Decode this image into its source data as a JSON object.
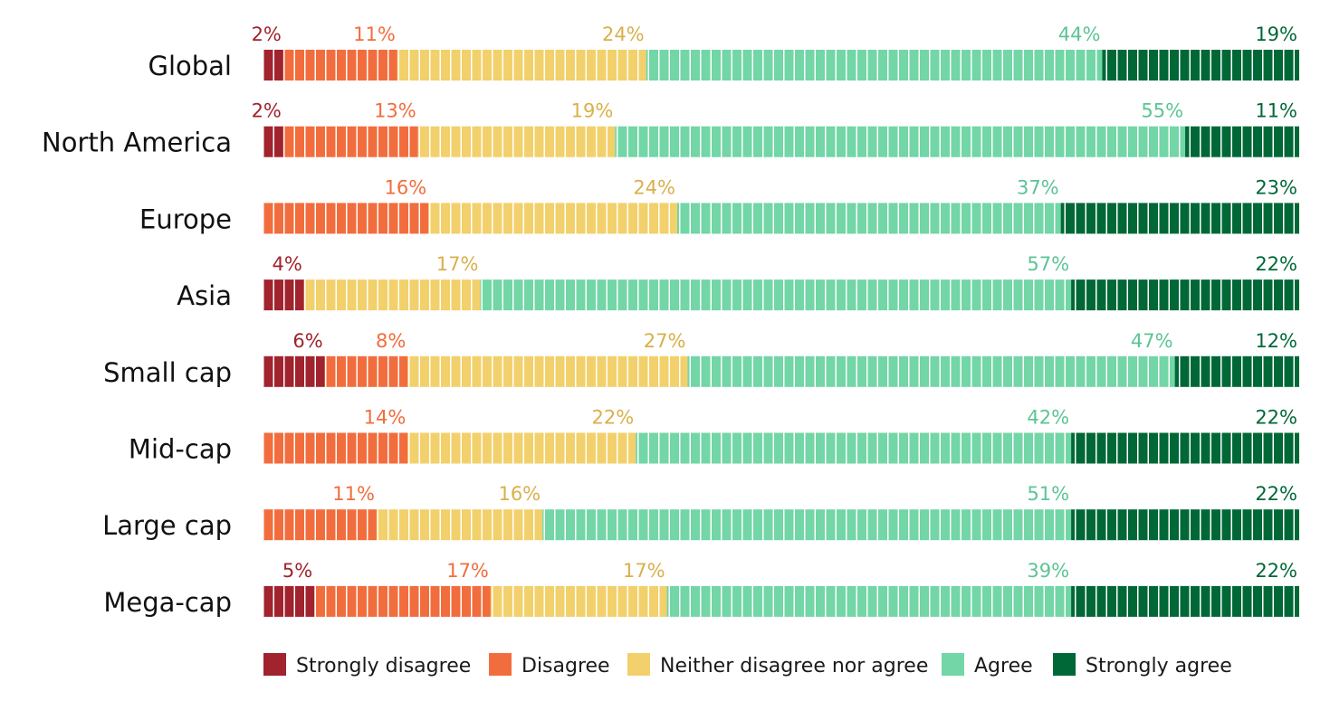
{
  "chart_data": {
    "type": "bar",
    "orientation": "horizontal",
    "stacked": "100%",
    "categories": [
      "Global",
      "North America",
      "Europe",
      "Asia",
      "Small cap",
      "Mid-cap",
      "Large cap",
      "Mega-cap"
    ],
    "series": [
      {
        "name": "Strongly disagree",
        "color": "#a0232e",
        "values": [
          2,
          2,
          0,
          4,
          6,
          0,
          0,
          5
        ]
      },
      {
        "name": "Disagree",
        "color": "#f26d3d",
        "values": [
          11,
          13,
          16,
          0,
          8,
          14,
          11,
          17
        ]
      },
      {
        "name": "Neither disagree nor agree",
        "color": "#f2d06b",
        "values": [
          24,
          19,
          24,
          17,
          27,
          22,
          16,
          17
        ]
      },
      {
        "name": "Agree",
        "color": "#72d6a6",
        "values": [
          44,
          55,
          37,
          57,
          47,
          42,
          51,
          39
        ]
      },
      {
        "name": "Strongly agree",
        "color": "#006837",
        "values": [
          19,
          11,
          23,
          22,
          12,
          22,
          22,
          22
        ]
      }
    ],
    "value_labels": [
      [
        "2%",
        "11%",
        "24%",
        "44%",
        "19%"
      ],
      [
        "2%",
        "13%",
        "19%",
        "55%",
        "11%"
      ],
      [
        "",
        "16%",
        "24%",
        "37%",
        "23%"
      ],
      [
        "4%",
        "",
        "17%",
        "57%",
        "22%"
      ],
      [
        "6%",
        "8%",
        "27%",
        "47%",
        "12%"
      ],
      [
        "",
        "14%",
        "22%",
        "42%",
        "22%"
      ],
      [
        "",
        "11%",
        "16%",
        "51%",
        "22%"
      ],
      [
        "5%",
        "17%",
        "17%",
        "39%",
        "22%"
      ]
    ],
    "label_colors": [
      "#a0232e",
      "#f26d3d",
      "#d9b04a",
      "#5cc495",
      "#006837"
    ],
    "title": "",
    "xlabel": "",
    "ylabel": "",
    "xlim": [
      0,
      100
    ],
    "grid": false,
    "legend_position": "bottom"
  }
}
